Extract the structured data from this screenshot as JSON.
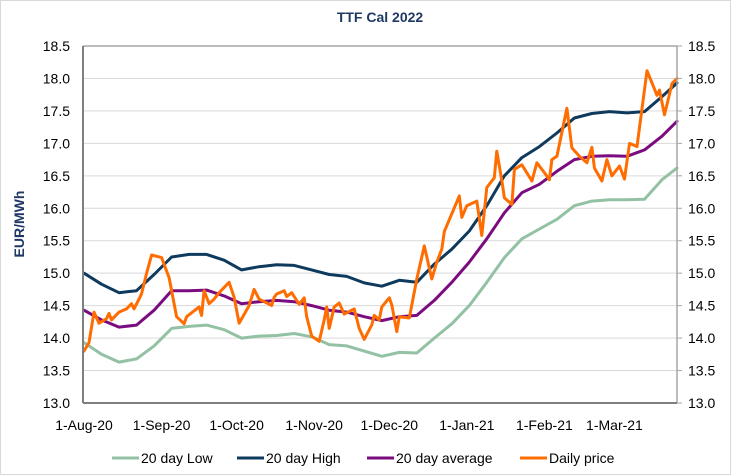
{
  "chart_data": {
    "type": "line",
    "title": "TTF Cal 2022",
    "ylabel": "EUR/MWh",
    "xlabel": "",
    "ylim": [
      13.0,
      18.5
    ],
    "yticks": [
      "13.0",
      "13.5",
      "14.0",
      "14.5",
      "15.0",
      "15.5",
      "16.0",
      "16.5",
      "17.0",
      "17.5",
      "18.0",
      "18.5"
    ],
    "secondary_yaxis_mirrors_primary": true,
    "xlim": [
      "2020-08-01",
      "2021-03-26"
    ],
    "xticks": [
      {
        "date": "2020-08-01",
        "label": "1-Aug-20"
      },
      {
        "date": "2020-09-01",
        "label": "1-Sep-20"
      },
      {
        "date": "2020-10-01",
        "label": "1-Oct-20"
      },
      {
        "date": "2020-11-01",
        "label": "1-Nov-20"
      },
      {
        "date": "2020-12-01",
        "label": "1-Dec-20"
      },
      {
        "date": "2021-01-01",
        "label": "1-Jan-21"
      },
      {
        "date": "2021-02-01",
        "label": "1-Feb-21"
      },
      {
        "date": "2021-03-01",
        "label": "1-Mar-21"
      }
    ],
    "grid": "horizontal",
    "legend_position": "bottom",
    "x": [
      "2020-08-01",
      "2020-08-08",
      "2020-08-15",
      "2020-08-22",
      "2020-08-29",
      "2020-09-05",
      "2020-09-12",
      "2020-09-19",
      "2020-09-26",
      "2020-10-03",
      "2020-10-10",
      "2020-10-17",
      "2020-10-24",
      "2020-10-31",
      "2020-11-07",
      "2020-11-14",
      "2020-11-21",
      "2020-11-28",
      "2020-12-05",
      "2020-12-12",
      "2020-12-19",
      "2020-12-26",
      "2021-01-02",
      "2021-01-09",
      "2021-01-16",
      "2021-01-23",
      "2021-01-30",
      "2021-02-06",
      "2021-02-13",
      "2021-02-20",
      "2021-02-27",
      "2021-03-06",
      "2021-03-13",
      "2021-03-20",
      "2021-03-26"
    ],
    "series": [
      {
        "name": "20 day Low",
        "color": "#93c1a4",
        "values": [
          13.93,
          13.75,
          13.63,
          13.68,
          13.88,
          14.15,
          14.18,
          14.2,
          14.13,
          14.0,
          14.03,
          14.04,
          14.07,
          14.02,
          13.9,
          13.88,
          13.8,
          13.72,
          13.78,
          13.77,
          14.0,
          14.22,
          14.5,
          14.86,
          15.24,
          15.53,
          15.68,
          15.83,
          16.04,
          16.11,
          16.13,
          16.13,
          16.14,
          16.44,
          16.62
        ]
      },
      {
        "name": "20 day High",
        "color": "#0e3a5e",
        "values": [
          15.0,
          14.83,
          14.7,
          14.73,
          14.98,
          15.25,
          15.29,
          15.29,
          15.2,
          15.05,
          15.1,
          15.13,
          15.12,
          15.05,
          14.98,
          14.95,
          14.85,
          14.8,
          14.89,
          14.86,
          15.14,
          15.37,
          15.65,
          16.04,
          16.5,
          16.78,
          16.95,
          17.16,
          17.39,
          17.46,
          17.49,
          17.47,
          17.49,
          17.72,
          17.93
        ]
      },
      {
        "name": "20 day average",
        "color": "#7b0c80",
        "values": [
          14.43,
          14.28,
          14.17,
          14.2,
          14.43,
          14.73,
          14.73,
          14.74,
          14.65,
          14.53,
          14.56,
          14.58,
          14.56,
          14.5,
          14.43,
          14.4,
          14.33,
          14.27,
          14.33,
          14.35,
          14.58,
          14.86,
          15.17,
          15.53,
          15.93,
          16.24,
          16.37,
          16.57,
          16.75,
          16.8,
          16.81,
          16.8,
          16.9,
          17.11,
          17.34
        ]
      },
      {
        "name": "Daily price",
        "color": "#ff6d00",
        "x": [
          "2020-08-01",
          "2020-08-03",
          "2020-08-05",
          "2020-08-07",
          "2020-08-10",
          "2020-08-11",
          "2020-08-12",
          "2020-08-15",
          "2020-08-18",
          "2020-08-20",
          "2020-08-21",
          "2020-08-23",
          "2020-08-24",
          "2020-08-26",
          "2020-08-28",
          "2020-09-01",
          "2020-09-04",
          "2020-09-07",
          "2020-09-10",
          "2020-09-11",
          "2020-09-16",
          "2020-09-17",
          "2020-09-18",
          "2020-09-20",
          "2020-09-22",
          "2020-09-24",
          "2020-09-28",
          "2020-09-30",
          "2020-10-02",
          "2020-10-06",
          "2020-10-08",
          "2020-10-10",
          "2020-10-15",
          "2020-10-16",
          "2020-10-17",
          "2020-10-20",
          "2020-10-21",
          "2020-10-23",
          "2020-10-26",
          "2020-10-28",
          "2020-10-29",
          "2020-10-31",
          "2020-11-03",
          "2020-11-05",
          "2020-11-06",
          "2020-11-07",
          "2020-11-09",
          "2020-11-11",
          "2020-11-13",
          "2020-11-17",
          "2020-11-19",
          "2020-11-21",
          "2020-11-24",
          "2020-11-25",
          "2020-11-27",
          "2020-11-28",
          "2020-12-01",
          "2020-12-02",
          "2020-12-04",
          "2020-12-05",
          "2020-12-09",
          "2020-12-12",
          "2020-12-15",
          "2020-12-18",
          "2020-12-20",
          "2020-12-22",
          "2020-12-23",
          "2020-12-29",
          "2020-12-30",
          "2021-01-01",
          "2021-01-05",
          "2021-01-07",
          "2021-01-09",
          "2021-01-12",
          "2021-01-13",
          "2021-01-15",
          "2021-01-16",
          "2021-01-19",
          "2021-01-20",
          "2021-01-23",
          "2021-01-27",
          "2021-01-29",
          "2021-02-01",
          "2021-02-03",
          "2021-02-04",
          "2021-02-06",
          "2021-02-10",
          "2021-02-12",
          "2021-02-15",
          "2021-02-18",
          "2021-02-20",
          "2021-02-21",
          "2021-02-24",
          "2021-02-26",
          "2021-02-28",
          "2021-03-03",
          "2021-03-05",
          "2021-03-07",
          "2021-03-10",
          "2021-03-14",
          "2021-03-18",
          "2021-03-19",
          "2021-03-21",
          "2021-03-24",
          "2021-03-26"
        ],
        "values": [
          13.8,
          13.93,
          14.4,
          14.23,
          14.3,
          14.38,
          14.28,
          14.4,
          14.45,
          14.53,
          14.45,
          14.6,
          14.68,
          15.0,
          15.28,
          15.24,
          14.93,
          14.33,
          14.22,
          14.33,
          14.48,
          14.35,
          14.73,
          14.53,
          14.6,
          14.7,
          14.86,
          14.63,
          14.23,
          14.5,
          14.75,
          14.6,
          14.5,
          14.63,
          14.68,
          14.73,
          14.64,
          14.7,
          14.52,
          14.62,
          14.33,
          14.03,
          13.95,
          14.28,
          14.48,
          14.15,
          14.48,
          14.54,
          14.37,
          14.45,
          14.15,
          13.98,
          14.2,
          14.35,
          14.28,
          14.48,
          14.62,
          14.51,
          14.1,
          14.33,
          14.31,
          14.91,
          15.42,
          14.91,
          15.17,
          15.37,
          15.64,
          16.19,
          15.86,
          16.04,
          16.11,
          15.58,
          16.32,
          16.47,
          16.88,
          16.42,
          16.16,
          16.06,
          16.6,
          16.67,
          16.42,
          16.7,
          16.55,
          16.44,
          16.75,
          16.8,
          17.54,
          16.93,
          16.8,
          16.7,
          16.94,
          16.62,
          16.42,
          16.75,
          16.5,
          16.65,
          16.45,
          17.0,
          16.95,
          18.12,
          17.74,
          17.82,
          17.44,
          17.92,
          18.0
        ]
      }
    ]
  }
}
